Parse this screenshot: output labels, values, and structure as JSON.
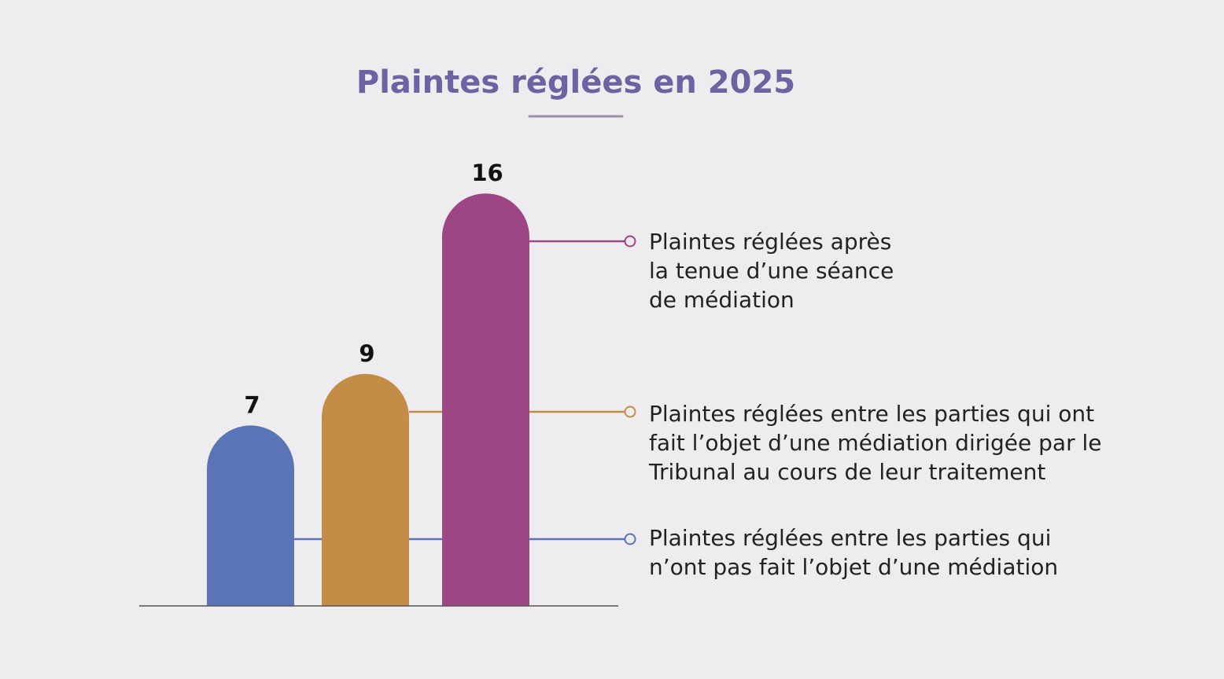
{
  "chart_data": {
    "type": "bar",
    "title": "Plaintes réglées en 2025",
    "xlabel": "",
    "ylabel": "",
    "ylim": [
      0,
      16
    ],
    "grid": false,
    "legend_placement": "right",
    "series": [
      {
        "value": 7,
        "value_label": "7",
        "legend_lines": [
          "Plaintes réglées entre les parties qui",
          "n’ont pas fait l’objet d’une médiation"
        ],
        "color": "#5a74b6"
      },
      {
        "value": 9,
        "value_label": "9",
        "legend_lines": [
          "Plaintes réglées entre les parties qui ont",
          "fait l’objet d’une médiation dirigée par le",
          "Tribunal au cours de leur traitement"
        ],
        "color": "#c48d47"
      },
      {
        "value": 16,
        "value_label": "16",
        "legend_lines": [
          "Plaintes réglées après",
          "la tenue d’une séance",
          "de médiation"
        ],
        "color": "#9c4684"
      }
    ]
  },
  "colors": {
    "background": "#eeecef",
    "title": "#6c64a2",
    "title_underline": "#9b8ea3",
    "baseline": "#555555"
  }
}
